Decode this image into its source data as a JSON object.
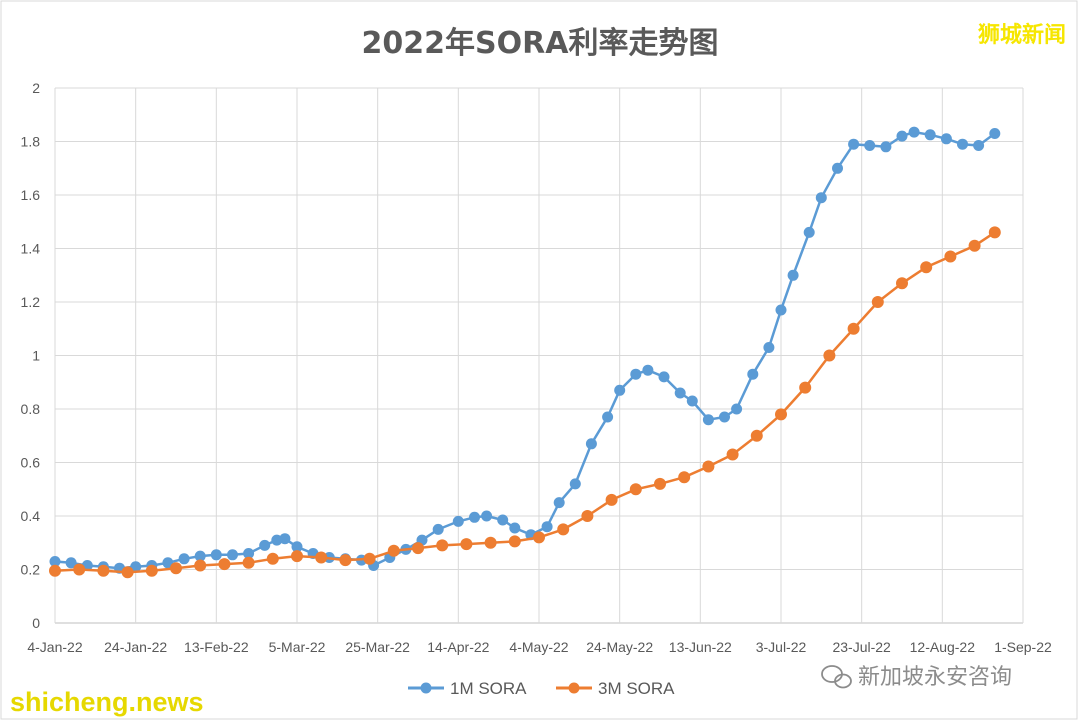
{
  "watermarks": {
    "top_right": "狮城新闻",
    "bottom_left": "shicheng.news",
    "bottom_right": "新加坡永安咨询"
  },
  "colors": {
    "series_1m": "#5b9bd5",
    "series_3m": "#ed7d31"
  },
  "chart_data": {
    "type": "line",
    "title": "2022年SORA利率走势图",
    "xlabel": "",
    "ylabel": "",
    "ylim": [
      0,
      2
    ],
    "y_ticks": [
      "0",
      "0.2",
      "0.4",
      "0.6",
      "0.8",
      "1",
      "1.2",
      "1.4",
      "1.6",
      "1.8",
      "2"
    ],
    "x_range": [
      "2022-01-04",
      "2022-09-01"
    ],
    "x_ticks": [
      "4-Jan-22",
      "24-Jan-22",
      "13-Feb-22",
      "5-Mar-22",
      "25-Mar-22",
      "14-Apr-22",
      "4-May-22",
      "24-May-22",
      "13-Jun-22",
      "3-Jul-22",
      "23-Jul-22",
      "12-Aug-22",
      "1-Sep-22"
    ],
    "grid": true,
    "legend_position": "bottom",
    "series": [
      {
        "name": "1M SORA",
        "points": [
          [
            "2022-01-04",
            0.23
          ],
          [
            "2022-01-08",
            0.225
          ],
          [
            "2022-01-12",
            0.215
          ],
          [
            "2022-01-16",
            0.21
          ],
          [
            "2022-01-20",
            0.205
          ],
          [
            "2022-01-24",
            0.21
          ],
          [
            "2022-01-28",
            0.215
          ],
          [
            "2022-02-01",
            0.225
          ],
          [
            "2022-02-05",
            0.24
          ],
          [
            "2022-02-09",
            0.25
          ],
          [
            "2022-02-13",
            0.255
          ],
          [
            "2022-02-17",
            0.255
          ],
          [
            "2022-02-21",
            0.26
          ],
          [
            "2022-02-25",
            0.29
          ],
          [
            "2022-02-28",
            0.31
          ],
          [
            "2022-03-02",
            0.315
          ],
          [
            "2022-03-05",
            0.285
          ],
          [
            "2022-03-09",
            0.26
          ],
          [
            "2022-03-13",
            0.245
          ],
          [
            "2022-03-17",
            0.24
          ],
          [
            "2022-03-21",
            0.235
          ],
          [
            "2022-03-24",
            0.215
          ],
          [
            "2022-03-28",
            0.245
          ],
          [
            "2022-04-01",
            0.275
          ],
          [
            "2022-04-05",
            0.31
          ],
          [
            "2022-04-09",
            0.35
          ],
          [
            "2022-04-14",
            0.38
          ],
          [
            "2022-04-18",
            0.395
          ],
          [
            "2022-04-21",
            0.4
          ],
          [
            "2022-04-25",
            0.385
          ],
          [
            "2022-04-28",
            0.355
          ],
          [
            "2022-05-02",
            0.33
          ],
          [
            "2022-05-06",
            0.36
          ],
          [
            "2022-05-09",
            0.45
          ],
          [
            "2022-05-13",
            0.52
          ],
          [
            "2022-05-17",
            0.67
          ],
          [
            "2022-05-21",
            0.77
          ],
          [
            "2022-05-24",
            0.87
          ],
          [
            "2022-05-28",
            0.93
          ],
          [
            "2022-05-31",
            0.945
          ],
          [
            "2022-06-04",
            0.92
          ],
          [
            "2022-06-08",
            0.86
          ],
          [
            "2022-06-11",
            0.83
          ],
          [
            "2022-06-15",
            0.76
          ],
          [
            "2022-06-19",
            0.77
          ],
          [
            "2022-06-22",
            0.8
          ],
          [
            "2022-06-26",
            0.93
          ],
          [
            "2022-06-30",
            1.03
          ],
          [
            "2022-07-03",
            1.17
          ],
          [
            "2022-07-06",
            1.3
          ],
          [
            "2022-07-10",
            1.46
          ],
          [
            "2022-07-13",
            1.59
          ],
          [
            "2022-07-17",
            1.7
          ],
          [
            "2022-07-21",
            1.79
          ],
          [
            "2022-07-25",
            1.785
          ],
          [
            "2022-07-29",
            1.78
          ],
          [
            "2022-08-02",
            1.82
          ],
          [
            "2022-08-05",
            1.835
          ],
          [
            "2022-08-09",
            1.825
          ],
          [
            "2022-08-13",
            1.81
          ],
          [
            "2022-08-17",
            1.79
          ],
          [
            "2022-08-21",
            1.785
          ],
          [
            "2022-08-25",
            1.83
          ]
        ]
      },
      {
        "name": "3M SORA",
        "points": [
          [
            "2022-01-04",
            0.195
          ],
          [
            "2022-01-10",
            0.2
          ],
          [
            "2022-01-16",
            0.195
          ],
          [
            "2022-01-22",
            0.19
          ],
          [
            "2022-01-28",
            0.195
          ],
          [
            "2022-02-03",
            0.205
          ],
          [
            "2022-02-09",
            0.215
          ],
          [
            "2022-02-15",
            0.22
          ],
          [
            "2022-02-21",
            0.225
          ],
          [
            "2022-02-27",
            0.24
          ],
          [
            "2022-03-05",
            0.25
          ],
          [
            "2022-03-11",
            0.245
          ],
          [
            "2022-03-17",
            0.235
          ],
          [
            "2022-03-23",
            0.24
          ],
          [
            "2022-03-29",
            0.27
          ],
          [
            "2022-04-04",
            0.28
          ],
          [
            "2022-04-10",
            0.29
          ],
          [
            "2022-04-16",
            0.295
          ],
          [
            "2022-04-22",
            0.3
          ],
          [
            "2022-04-28",
            0.305
          ],
          [
            "2022-05-04",
            0.32
          ],
          [
            "2022-05-10",
            0.35
          ],
          [
            "2022-05-16",
            0.4
          ],
          [
            "2022-05-22",
            0.46
          ],
          [
            "2022-05-28",
            0.5
          ],
          [
            "2022-06-03",
            0.52
          ],
          [
            "2022-06-09",
            0.545
          ],
          [
            "2022-06-15",
            0.585
          ],
          [
            "2022-06-21",
            0.63
          ],
          [
            "2022-06-27",
            0.7
          ],
          [
            "2022-07-03",
            0.78
          ],
          [
            "2022-07-09",
            0.88
          ],
          [
            "2022-07-15",
            1.0
          ],
          [
            "2022-07-21",
            1.1
          ],
          [
            "2022-07-27",
            1.2
          ],
          [
            "2022-08-02",
            1.27
          ],
          [
            "2022-08-08",
            1.33
          ],
          [
            "2022-08-14",
            1.37
          ],
          [
            "2022-08-20",
            1.41
          ],
          [
            "2022-08-25",
            1.46
          ]
        ]
      }
    ]
  }
}
